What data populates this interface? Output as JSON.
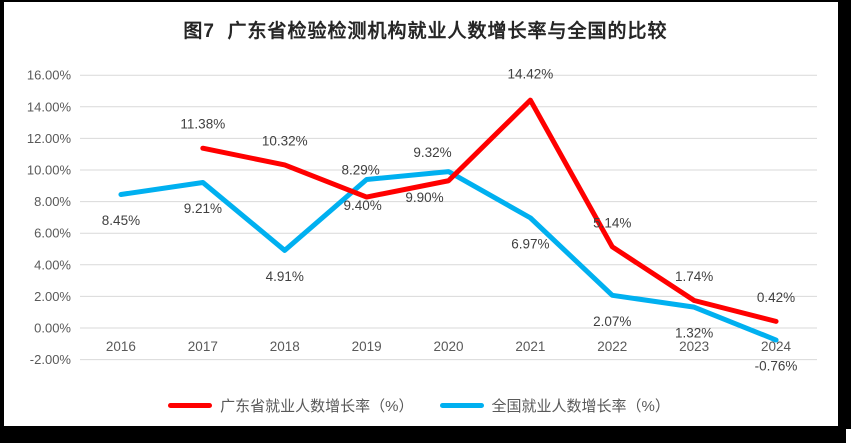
{
  "window": {
    "border_color": "#000000",
    "background": "#ffffff"
  },
  "chart_data": {
    "type": "line",
    "title": "图7  广东省检验检测机构就业人数增长率与全国的比较",
    "categories": [
      "2016",
      "2017",
      "2018",
      "2019",
      "2020",
      "2021",
      "2022",
      "2023",
      "2024"
    ],
    "series": [
      {
        "name": "广东省就业人数增长率（%）",
        "color": "#FF0000",
        "values": [
          null,
          11.38,
          10.32,
          8.29,
          9.32,
          14.42,
          5.14,
          1.74,
          0.42
        ],
        "labels": [
          "",
          "11.38%",
          "10.32%",
          "8.29%",
          "9.32%",
          "14.42%",
          "5.14%",
          "1.74%",
          "0.42%"
        ],
        "label_position": "above"
      },
      {
        "name": "全国就业人数增长率（%）",
        "color": "#00B0F0",
        "values": [
          8.45,
          9.21,
          4.91,
          9.4,
          9.9,
          6.97,
          2.07,
          1.32,
          -0.76
        ],
        "labels": [
          "8.45%",
          "9.21%",
          "4.91%",
          "9.40%",
          "9.90%",
          "6.97%",
          "2.07%",
          "1.32%",
          "-0.76%"
        ],
        "label_position": "below"
      }
    ],
    "xlabel": "",
    "ylabel": "",
    "ylim": [
      -2,
      16
    ],
    "y_tick_step": 2,
    "y_tick_labels": [
      "16.00%",
      "14.00%",
      "12.00%",
      "10.00%",
      "8.00%",
      "6.00%",
      "4.00%",
      "2.00%",
      "0.00%",
      "-2.00%"
    ],
    "grid": true,
    "legend_position": "bottom",
    "gridline_color": "#D9D9D9",
    "axis_text_color": "#595959",
    "data_label_color": "#404040",
    "title_color": "#262626"
  }
}
